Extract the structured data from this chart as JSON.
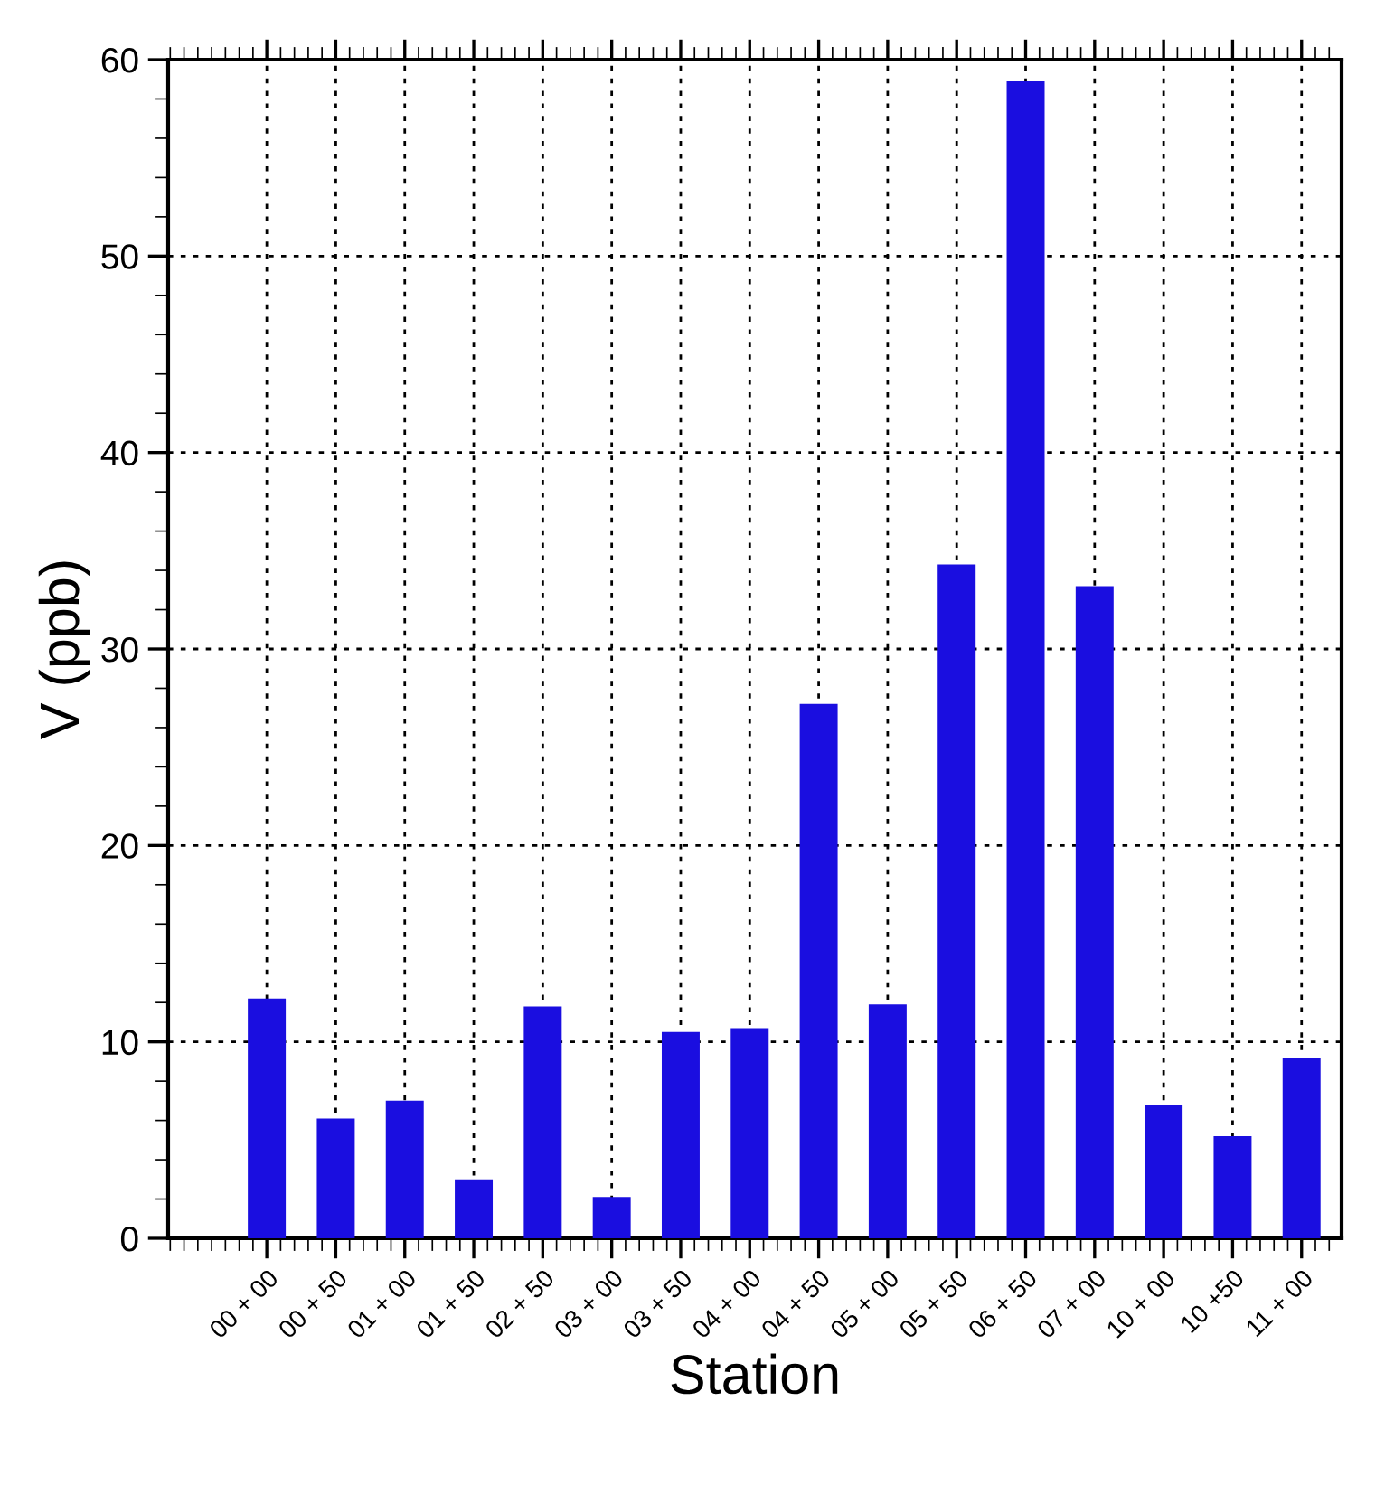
{
  "chart_data": {
    "type": "bar",
    "xlabel": "Station",
    "ylabel": "V (ppb)",
    "categories": [
      "00 + 00",
      "00 + 50",
      "01 + 00",
      "01 + 50",
      "02 + 50",
      "03 + 00",
      "03 + 50",
      "04 + 00",
      "04 + 50",
      "05 + 00",
      "05 + 50",
      "06 + 50",
      "07 + 00",
      "10 + 00",
      "10 +50",
      "11 + 00"
    ],
    "values": [
      12.2,
      6.1,
      7.0,
      3.0,
      11.8,
      2.1,
      10.5,
      10.7,
      27.2,
      11.9,
      34.3,
      58.9,
      33.2,
      6.8,
      5.2,
      9.2
    ],
    "color": "#1a0ee0",
    "ylim": [
      0,
      60
    ],
    "yticks": [
      0,
      10,
      20,
      30,
      40,
      50,
      60
    ],
    "grid": true,
    "legend": false
  }
}
